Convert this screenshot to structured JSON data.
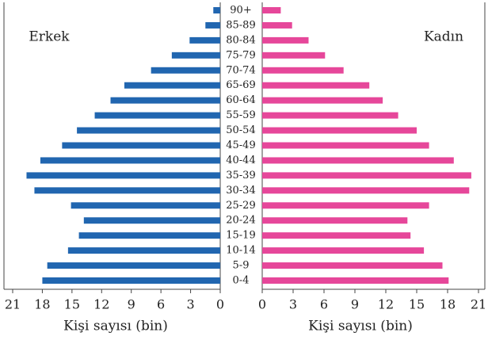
{
  "chart_data": {
    "type": "pyramid",
    "categories": [
      "90+",
      "85-89",
      "80-84",
      "75-79",
      "70-74",
      "65-69",
      "60-64",
      "55-59",
      "50-54",
      "45-49",
      "40-44",
      "35-39",
      "30-34",
      "25-29",
      "20-24",
      "15-19",
      "10-14",
      "5-9",
      "0-4"
    ],
    "series": [
      {
        "name": "Erkek",
        "color": "#2166b0",
        "values": [
          0.7,
          1.5,
          3.1,
          4.9,
          7.0,
          9.7,
          11.1,
          12.7,
          14.5,
          16.0,
          18.2,
          19.6,
          18.8,
          15.1,
          13.8,
          14.3,
          15.4,
          17.5,
          18.0
        ]
      },
      {
        "name": "Kadın",
        "color": "#e6479a",
        "values": [
          1.8,
          2.9,
          4.5,
          6.1,
          7.9,
          10.4,
          11.7,
          13.2,
          15.0,
          16.2,
          18.6,
          20.3,
          20.1,
          16.2,
          14.1,
          14.4,
          15.7,
          17.5,
          18.1
        ]
      }
    ],
    "xlabel": "Kişi sayısı (bin)",
    "xlim": [
      0,
      21
    ],
    "xticks": [
      0,
      3,
      6,
      9,
      12,
      15,
      18,
      21
    ]
  }
}
